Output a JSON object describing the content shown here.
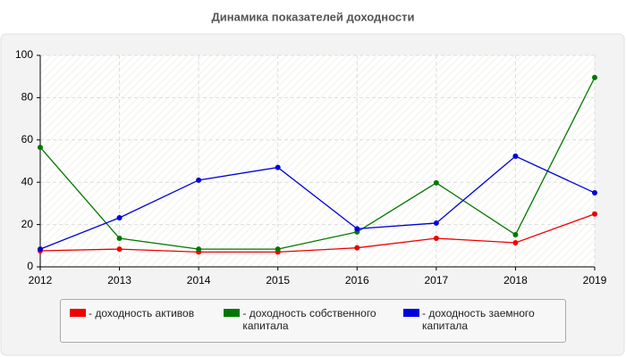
{
  "chart_data": {
    "type": "line",
    "title": "Динамика показателей доходности",
    "x": [
      2012,
      2013,
      2014,
      2015,
      2016,
      2017,
      2018,
      2019
    ],
    "xlim": [
      2012,
      2019
    ],
    "xticks": [
      2012,
      2013,
      2014,
      2015,
      2016,
      2017,
      2018,
      2019
    ],
    "ylim": [
      0,
      100
    ],
    "yticks": [
      0,
      20,
      40,
      60,
      80,
      100
    ],
    "grid": true,
    "series": [
      {
        "name": "- доходность активов",
        "color": "#ee0000",
        "values": [
          7.6,
          8.4,
          7,
          7,
          9,
          13.5,
          11.4,
          25
        ]
      },
      {
        "name": "- доходность собственного капитала",
        "color": "#007700",
        "values": [
          56.5,
          13.5,
          8.4,
          8.4,
          16.5,
          39.7,
          15.2,
          89.5
        ]
      },
      {
        "name": "- доходность заемного капитала",
        "color": "#0000dd",
        "values": [
          8.4,
          23.2,
          41,
          47,
          18,
          20.7,
          52.3,
          35
        ]
      }
    ]
  }
}
